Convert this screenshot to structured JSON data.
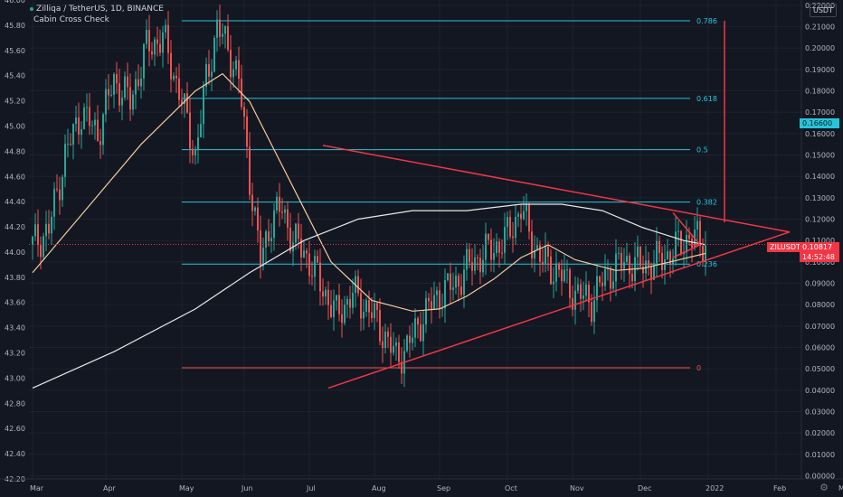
{
  "header": {
    "symbol_line": "Zilliqa / TetherUS, 1D, BINANCE",
    "indicator": "Cabin Cross Check",
    "currency_button": "USDT"
  },
  "price_tags": {
    "blue_value": "0.16600",
    "current_value": "0.10817",
    "current_symbol": "ZILUSDT",
    "countdown": "14:52:48"
  },
  "icons": {
    "settings": "gear-icon"
  },
  "colors": {
    "background": "#131722",
    "up": "#26a69a",
    "down": "#ef5350",
    "fib": "#26c6da",
    "annotation": "#f23645",
    "ma_fast": "#f5cba0",
    "ma_slow": "#e8e8e8",
    "axis_text": "#b2b5be"
  },
  "chart_data": {
    "type": "candlestick",
    "title": "Zilliqa / TetherUS, 1D, BINANCE",
    "x_axis": {
      "ticks": [
        "Mar",
        "Apr",
        "May",
        "Jun",
        "Jul",
        "Aug",
        "Sep",
        "Oct",
        "Nov",
        "Dec",
        "2022",
        "Feb",
        "Ma"
      ]
    },
    "left_axis": {
      "ticks": [
        "46.00",
        "45.80",
        "45.60",
        "45.40",
        "45.20",
        "45.00",
        "44.80",
        "44.60",
        "44.40",
        "44.20",
        "44.00",
        "43.80",
        "43.60",
        "43.40",
        "43.20",
        "43.00",
        "42.80",
        "42.60",
        "42.40",
        "42.20"
      ],
      "range": [
        42.2,
        46.0
      ]
    },
    "right_axis": {
      "ticks": [
        "0.22000",
        "0.21000",
        "0.20000",
        "0.19000",
        "0.18000",
        "0.17000",
        "0.16000",
        "0.15000",
        "0.14000",
        "0.13000",
        "0.12000",
        "0.11000",
        "0.10000",
        "0.09000",
        "0.08000",
        "0.07000",
        "0.06000",
        "0.05000",
        "0.04000",
        "0.03000",
        "0.02000",
        "0.01000",
        "0.00000"
      ],
      "range": [
        -0.0015,
        0.2225
      ]
    },
    "fib_levels": [
      {
        "label": "0.786",
        "value": 0.2128
      },
      {
        "label": "0.618",
        "value": 0.1765
      },
      {
        "label": "0.5",
        "value": 0.1525
      },
      {
        "label": "0.382",
        "value": 0.128
      },
      {
        "label": "0.236",
        "value": 0.099
      },
      {
        "label": "0",
        "value": 0.0505
      }
    ],
    "current_price": 0.10817,
    "series": [
      {
        "name": "ZILUSDT candles",
        "points": [
          {
            "d": 0,
            "v": 0.108
          },
          {
            "d": 6,
            "v": 0.115
          },
          {
            "d": 12,
            "v": 0.15
          },
          {
            "d": 18,
            "v": 0.17
          },
          {
            "d": 24,
            "v": 0.16
          },
          {
            "d": 30,
            "v": 0.185
          },
          {
            "d": 36,
            "v": 0.175
          },
          {
            "d": 42,
            "v": 0.2
          },
          {
            "d": 48,
            "v": 0.205
          },
          {
            "d": 54,
            "v": 0.18
          },
          {
            "d": 60,
            "v": 0.15
          },
          {
            "d": 64,
            "v": 0.185
          },
          {
            "d": 68,
            "v": 0.21
          },
          {
            "d": 72,
            "v": 0.2
          },
          {
            "d": 76,
            "v": 0.185
          },
          {
            "d": 80,
            "v": 0.14
          },
          {
            "d": 84,
            "v": 0.1
          },
          {
            "d": 88,
            "v": 0.12
          },
          {
            "d": 92,
            "v": 0.125
          },
          {
            "d": 96,
            "v": 0.11
          },
          {
            "d": 100,
            "v": 0.105
          },
          {
            "d": 106,
            "v": 0.09
          },
          {
            "d": 112,
            "v": 0.075
          },
          {
            "d": 118,
            "v": 0.085
          },
          {
            "d": 124,
            "v": 0.078
          },
          {
            "d": 130,
            "v": 0.065
          },
          {
            "d": 134,
            "v": 0.055
          },
          {
            "d": 138,
            "v": 0.06
          },
          {
            "d": 144,
            "v": 0.075
          },
          {
            "d": 150,
            "v": 0.085
          },
          {
            "d": 156,
            "v": 0.09
          },
          {
            "d": 162,
            "v": 0.1
          },
          {
            "d": 168,
            "v": 0.105
          },
          {
            "d": 174,
            "v": 0.11
          },
          {
            "d": 180,
            "v": 0.125
          },
          {
            "d": 184,
            "v": 0.11
          },
          {
            "d": 188,
            "v": 0.1
          },
          {
            "d": 194,
            "v": 0.095
          },
          {
            "d": 200,
            "v": 0.085
          },
          {
            "d": 206,
            "v": 0.082
          },
          {
            "d": 212,
            "v": 0.095
          },
          {
            "d": 218,
            "v": 0.1
          },
          {
            "d": 224,
            "v": 0.098
          },
          {
            "d": 230,
            "v": 0.1
          },
          {
            "d": 236,
            "v": 0.105
          },
          {
            "d": 242,
            "v": 0.112
          },
          {
            "d": 248,
            "v": 0.108
          }
        ]
      },
      {
        "name": "moving average (fast)",
        "points": [
          {
            "d": 0,
            "v": 0.095
          },
          {
            "d": 20,
            "v": 0.125
          },
          {
            "d": 40,
            "v": 0.155
          },
          {
            "d": 60,
            "v": 0.18
          },
          {
            "d": 70,
            "v": 0.188
          },
          {
            "d": 80,
            "v": 0.175
          },
          {
            "d": 90,
            "v": 0.15
          },
          {
            "d": 100,
            "v": 0.125
          },
          {
            "d": 110,
            "v": 0.1
          },
          {
            "d": 125,
            "v": 0.082
          },
          {
            "d": 140,
            "v": 0.077
          },
          {
            "d": 150,
            "v": 0.078
          },
          {
            "d": 160,
            "v": 0.084
          },
          {
            "d": 170,
            "v": 0.092
          },
          {
            "d": 180,
            "v": 0.102
          },
          {
            "d": 190,
            "v": 0.108
          },
          {
            "d": 200,
            "v": 0.101
          },
          {
            "d": 215,
            "v": 0.096
          },
          {
            "d": 225,
            "v": 0.097
          },
          {
            "d": 235,
            "v": 0.1
          },
          {
            "d": 248,
            "v": 0.104
          }
        ]
      },
      {
        "name": "moving average (slow)",
        "points": [
          {
            "d": 0,
            "v": 0.041
          },
          {
            "d": 30,
            "v": 0.058
          },
          {
            "d": 60,
            "v": 0.078
          },
          {
            "d": 80,
            "v": 0.095
          },
          {
            "d": 100,
            "v": 0.11
          },
          {
            "d": 120,
            "v": 0.12
          },
          {
            "d": 140,
            "v": 0.124
          },
          {
            "d": 160,
            "v": 0.124
          },
          {
            "d": 180,
            "v": 0.127
          },
          {
            "d": 195,
            "v": 0.127
          },
          {
            "d": 210,
            "v": 0.124
          },
          {
            "d": 225,
            "v": 0.116
          },
          {
            "d": 240,
            "v": 0.11
          },
          {
            "d": 248,
            "v": 0.108
          }
        ]
      }
    ],
    "drawings": [
      {
        "name": "triangle upper line",
        "from": {
          "d": 107,
          "v": 0.1545
        },
        "to": {
          "d": 279,
          "v": 0.114
        }
      },
      {
        "name": "triangle lower line",
        "from": {
          "d": 109,
          "v": 0.041
        },
        "to": {
          "d": 279,
          "v": 0.114
        }
      },
      {
        "name": "measure vertical",
        "from": {
          "d": 255,
          "v": 0.2128
        },
        "to": {
          "d": 255,
          "v": 0.1185
        }
      },
      {
        "name": "small triangle upper",
        "from": {
          "d": 236,
          "v": 0.123
        },
        "to": {
          "d": 246,
          "v": 0.108
        }
      },
      {
        "name": "small triangle lower",
        "from": {
          "d": 236,
          "v": 0.102
        },
        "to": {
          "d": 246,
          "v": 0.108
        }
      }
    ]
  }
}
